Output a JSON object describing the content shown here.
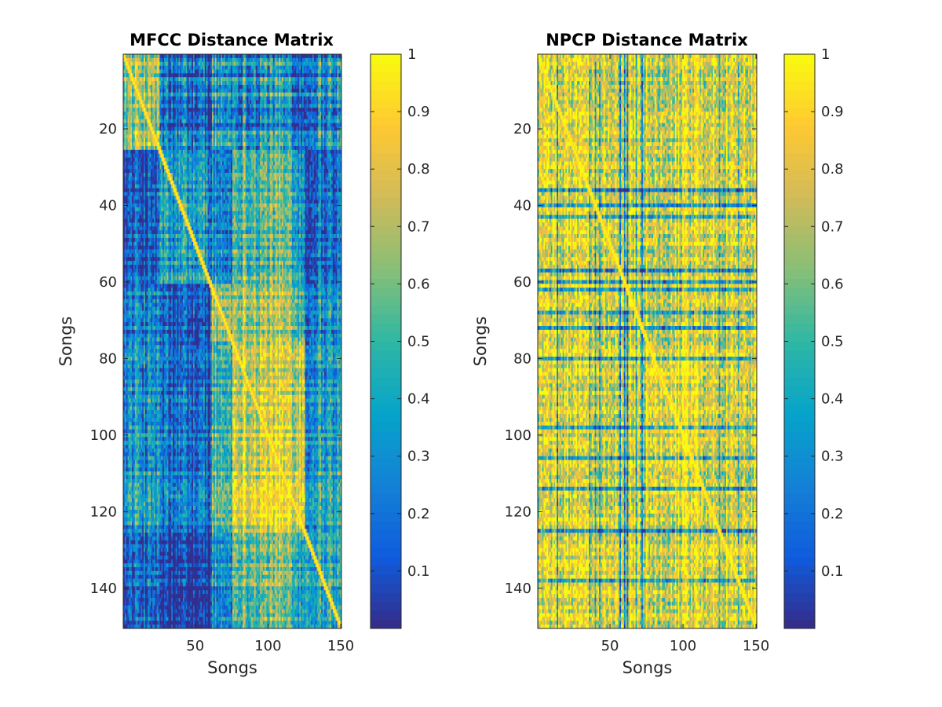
{
  "chart_data": [
    {
      "type": "heatmap",
      "title": "MFCC Distance Matrix",
      "xlabel": "Songs",
      "ylabel": "Songs",
      "n": 150,
      "xlim": [
        1,
        150
      ],
      "ylim": [
        1,
        150
      ],
      "y_direction": "reversed",
      "xticks": [
        50,
        100,
        150
      ],
      "yticks": [
        20,
        40,
        60,
        80,
        100,
        120,
        140
      ],
      "colorbar": {
        "range": [
          0,
          1
        ],
        "ticks": [
          0.1,
          0.2,
          0.3,
          0.4,
          0.5,
          0.6,
          0.7,
          0.8,
          0.9,
          1
        ]
      },
      "colormap": "parula",
      "diagonal_value": 1,
      "blocks": [
        {
          "range": [
            1,
            25
          ],
          "within_mean": 0.65,
          "cross_mean": 0.2
        },
        {
          "range": [
            26,
            60
          ],
          "within_mean": 0.35
        },
        {
          "range": [
            61,
            75
          ],
          "within_mean": 0.6
        },
        {
          "range": [
            76,
            125
          ],
          "within_mean": 0.82
        },
        {
          "range": [
            126,
            150
          ],
          "within_mean": 0.45
        }
      ],
      "dark_columns": [
        [
          1,
          25
        ],
        [
          26,
          60
        ],
        [
          120,
          128
        ]
      ],
      "bright_columns": [
        [
          76,
          125
        ]
      ]
    },
    {
      "type": "heatmap",
      "title": "NPCP Distance Matrix",
      "xlabel": "Songs",
      "ylabel": "Songs",
      "n": 150,
      "xlim": [
        1,
        150
      ],
      "ylim": [
        1,
        150
      ],
      "y_direction": "reversed",
      "xticks": [
        50,
        100,
        150
      ],
      "yticks": [
        20,
        40,
        60,
        80,
        100,
        120,
        140
      ],
      "colorbar": {
        "range": [
          0,
          1
        ],
        "ticks": [
          0.1,
          0.2,
          0.3,
          0.4,
          0.5,
          0.6,
          0.7,
          0.8,
          0.9,
          1
        ]
      },
      "colormap": "parula",
      "diagonal_value": 1,
      "overall_mean": 0.82,
      "bright_region": {
        "rows": [
          80,
          120
        ],
        "cols": [
          75,
          110
        ],
        "mean": 0.93
      },
      "dark_rows": [
        36,
        40,
        43,
        57,
        60,
        62,
        68,
        72,
        80,
        98,
        106,
        114,
        125,
        138
      ],
      "dark_columns": [
        14,
        36,
        40,
        43,
        57,
        60,
        62,
        68,
        72,
        125,
        138
      ]
    }
  ],
  "colors": {
    "parula": [
      "#352a87",
      "#0f5cdd",
      "#1481d6",
      "#06a4ca",
      "#2eb7a4",
      "#87bf77",
      "#d1bb59",
      "#fec832",
      "#f9fb0e"
    ]
  }
}
